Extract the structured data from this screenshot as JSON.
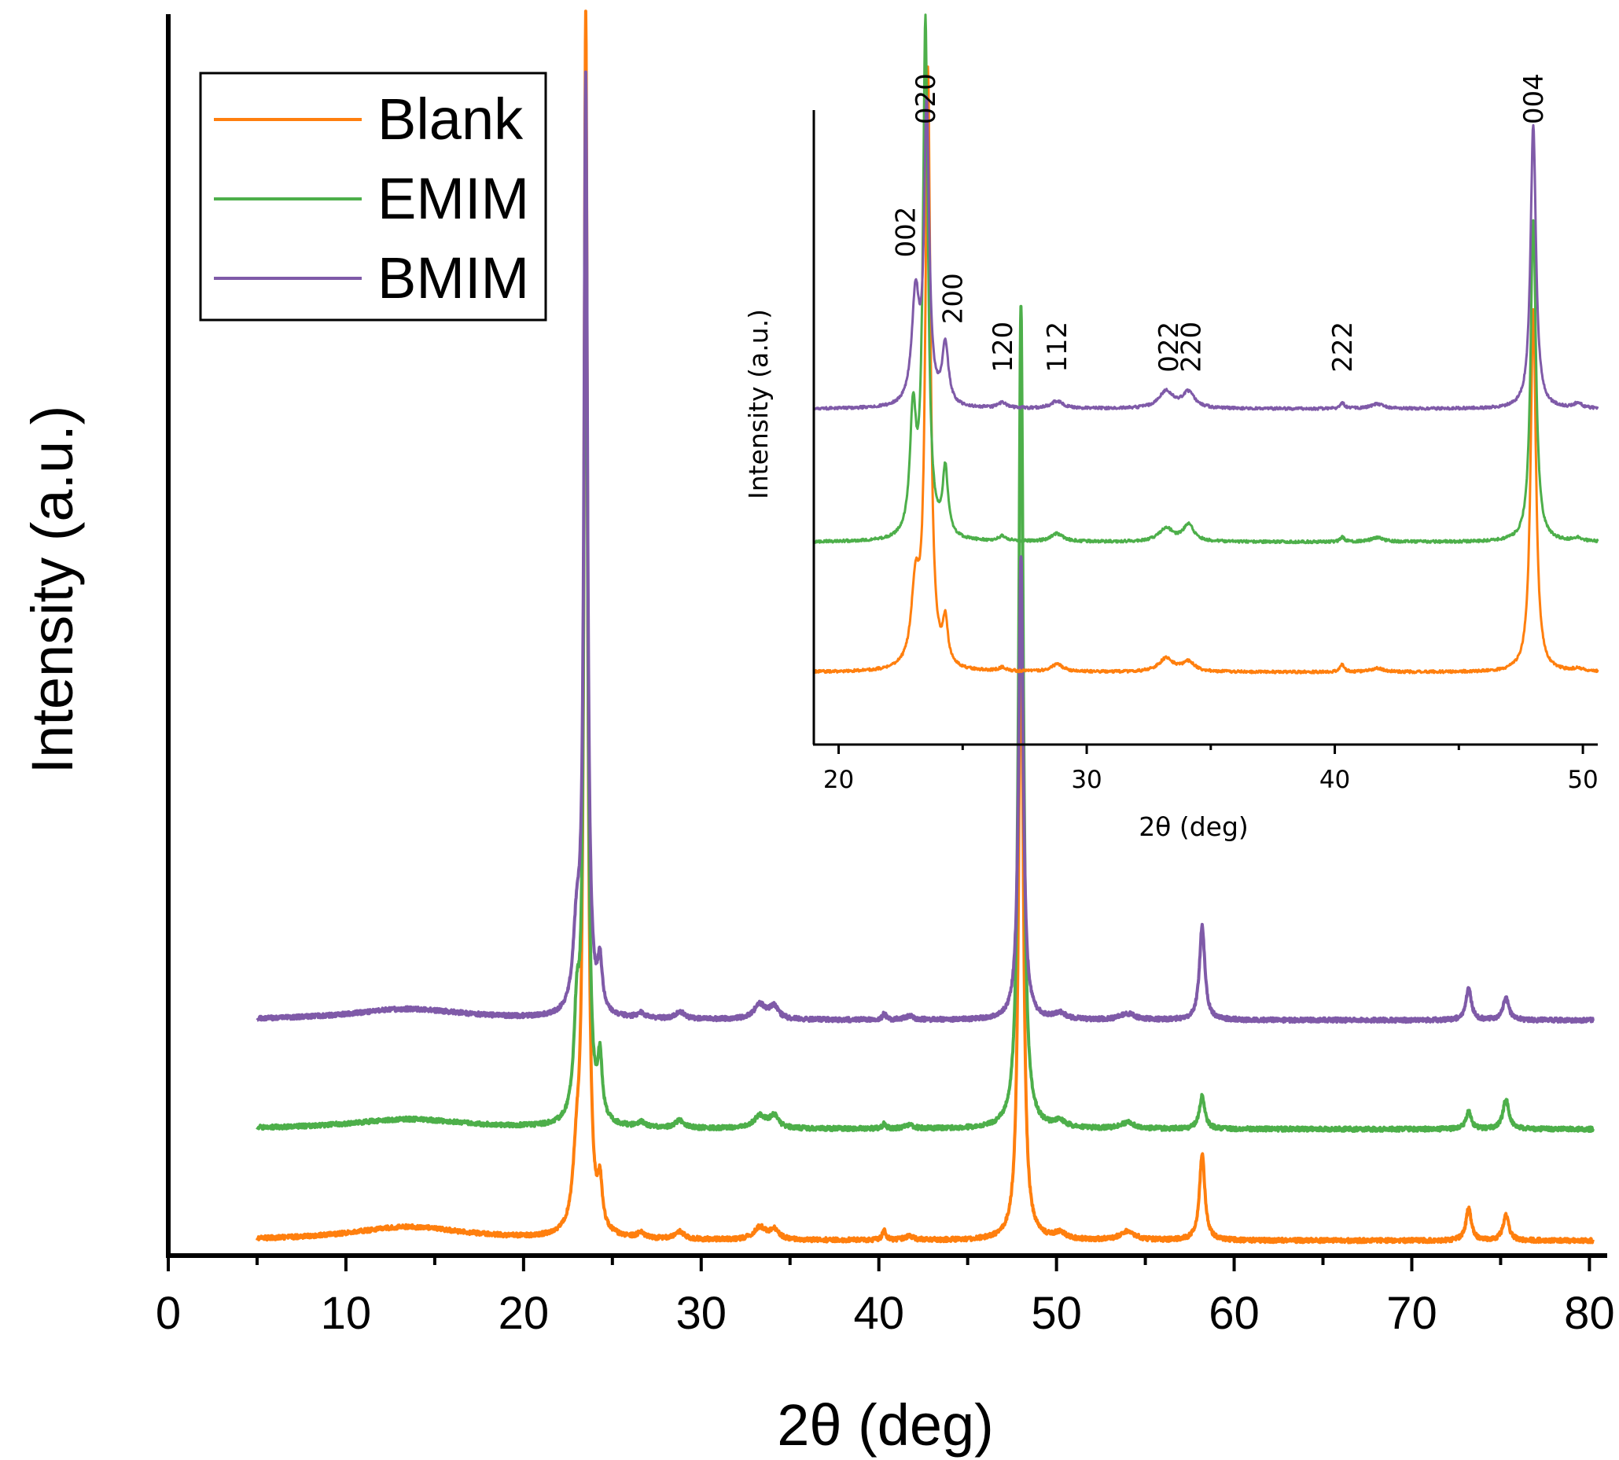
{
  "chart_data": [
    {
      "type": "line",
      "xlabel": "2θ (deg)",
      "ylabel": "Intensity (a.u.)",
      "xlim": [
        0,
        81
      ],
      "ylim": [
        0,
        100
      ],
      "xticks": [
        "0",
        "10",
        "20",
        "30",
        "40",
        "50",
        "60",
        "70",
        "80"
      ],
      "legend": {
        "position": "top-left",
        "entries": [
          "Blank",
          "EMIM",
          "BMIM"
        ]
      },
      "series": [
        {
          "name": "Blank",
          "color": "#ff7f0e",
          "baseline": 1.2,
          "x_range": [
            5,
            80.2
          ],
          "peaks": [
            {
              "x": 13.5,
              "h": 1.1,
              "w": 4.0
            },
            {
              "x": 23.0,
              "h": 5.5,
              "w": 0.25
            },
            {
              "x": 23.5,
              "h": 98.0,
              "w": 0.12
            },
            {
              "x": 24.3,
              "h": 3.5,
              "w": 0.15
            },
            {
              "x": 26.6,
              "h": 0.4,
              "w": 0.25
            },
            {
              "x": 28.8,
              "h": 0.6,
              "w": 0.3
            },
            {
              "x": 33.3,
              "h": 1.0,
              "w": 0.4
            },
            {
              "x": 34.1,
              "h": 0.8,
              "w": 0.3
            },
            {
              "x": 40.3,
              "h": 0.8,
              "w": 0.12
            },
            {
              "x": 41.7,
              "h": 0.3,
              "w": 0.3
            },
            {
              "x": 48.0,
              "h": 54.0,
              "w": 0.15
            },
            {
              "x": 50.2,
              "h": 0.5,
              "w": 0.4
            },
            {
              "x": 54.0,
              "h": 0.7,
              "w": 0.5
            },
            {
              "x": 58.2,
              "h": 7.0,
              "w": 0.18
            },
            {
              "x": 73.2,
              "h": 2.6,
              "w": 0.18
            },
            {
              "x": 75.3,
              "h": 2.0,
              "w": 0.2
            }
          ]
        },
        {
          "name": "EMIM",
          "color": "#4daf4a",
          "baseline": 10.2,
          "x_range": [
            5,
            80.2
          ],
          "peaks": [
            {
              "x": 13.5,
              "h": 0.8,
              "w": 4.0
            },
            {
              "x": 23.0,
              "h": 8.0,
              "w": 0.2
            },
            {
              "x": 23.5,
              "h": 81.0,
              "w": 0.12
            },
            {
              "x": 24.3,
              "h": 4.8,
              "w": 0.15
            },
            {
              "x": 26.6,
              "h": 0.4,
              "w": 0.25
            },
            {
              "x": 28.8,
              "h": 0.6,
              "w": 0.3
            },
            {
              "x": 33.3,
              "h": 1.0,
              "w": 0.4
            },
            {
              "x": 34.1,
              "h": 1.0,
              "w": 0.3
            },
            {
              "x": 40.3,
              "h": 0.4,
              "w": 0.12
            },
            {
              "x": 41.7,
              "h": 0.3,
              "w": 0.3
            },
            {
              "x": 48.0,
              "h": 66.5,
              "w": 0.15
            },
            {
              "x": 50.2,
              "h": 0.5,
              "w": 0.4
            },
            {
              "x": 54.0,
              "h": 0.5,
              "w": 0.5
            },
            {
              "x": 58.2,
              "h": 2.7,
              "w": 0.18
            },
            {
              "x": 73.2,
              "h": 1.4,
              "w": 0.18
            },
            {
              "x": 75.3,
              "h": 2.4,
              "w": 0.2
            }
          ]
        },
        {
          "name": "BMIM",
          "color": "#7f5aa8",
          "baseline": 19.0,
          "x_range": [
            5,
            80.2
          ],
          "peaks": [
            {
              "x": 13.5,
              "h": 0.9,
              "w": 4.0
            },
            {
              "x": 23.0,
              "h": 6.5,
              "w": 0.25
            },
            {
              "x": 23.5,
              "h": 75.0,
              "w": 0.12
            },
            {
              "x": 24.3,
              "h": 3.8,
              "w": 0.15
            },
            {
              "x": 26.6,
              "h": 0.4,
              "w": 0.25
            },
            {
              "x": 28.8,
              "h": 0.6,
              "w": 0.3
            },
            {
              "x": 33.3,
              "h": 1.2,
              "w": 0.4
            },
            {
              "x": 34.1,
              "h": 1.0,
              "w": 0.3
            },
            {
              "x": 40.3,
              "h": 0.5,
              "w": 0.12
            },
            {
              "x": 41.7,
              "h": 0.3,
              "w": 0.3
            },
            {
              "x": 48.0,
              "h": 37.5,
              "w": 0.15
            },
            {
              "x": 50.2,
              "h": 0.5,
              "w": 0.4
            },
            {
              "x": 54.0,
              "h": 0.5,
              "w": 0.5
            },
            {
              "x": 58.2,
              "h": 7.6,
              "w": 0.18
            },
            {
              "x": 73.2,
              "h": 2.6,
              "w": 0.18
            },
            {
              "x": 75.3,
              "h": 1.8,
              "w": 0.2
            }
          ]
        }
      ]
    },
    {
      "type": "line",
      "title": "inset",
      "xlabel": "2θ (deg)",
      "ylabel": "Intensity (a.u.)",
      "xlim": [
        19,
        50.6
      ],
      "ylim": [
        0,
        100
      ],
      "xticks": [
        "20",
        "30",
        "40",
        "50"
      ],
      "series": [
        {
          "name": "Blank",
          "color": "#ff7f0e",
          "baseline": 6.5,
          "x_range": [
            19,
            50.6
          ],
          "peaks": [
            {
              "x": 23.1,
              "h": 13.0,
              "w": 0.2
            },
            {
              "x": 23.6,
              "h": 98.0,
              "w": 0.12
            },
            {
              "x": 24.3,
              "h": 7.0,
              "w": 0.12
            },
            {
              "x": 26.6,
              "h": 0.6,
              "w": 0.2
            },
            {
              "x": 28.8,
              "h": 1.2,
              "w": 0.3
            },
            {
              "x": 33.2,
              "h": 2.2,
              "w": 0.35
            },
            {
              "x": 34.1,
              "h": 1.6,
              "w": 0.3
            },
            {
              "x": 40.3,
              "h": 1.2,
              "w": 0.1
            },
            {
              "x": 41.7,
              "h": 0.6,
              "w": 0.3
            },
            {
              "x": 48.0,
              "h": 60.0,
              "w": 0.13
            },
            {
              "x": 49.8,
              "h": 0.5,
              "w": 0.2
            }
          ]
        },
        {
          "name": "EMIM",
          "color": "#4daf4a",
          "baseline": 28.0,
          "x_range": [
            19,
            50.6
          ],
          "peaks": [
            {
              "x": 23.0,
              "h": 20.0,
              "w": 0.15
            },
            {
              "x": 23.5,
              "h": 85.0,
              "w": 0.12
            },
            {
              "x": 24.3,
              "h": 11.0,
              "w": 0.13
            },
            {
              "x": 26.6,
              "h": 0.8,
              "w": 0.2
            },
            {
              "x": 28.8,
              "h": 1.3,
              "w": 0.3
            },
            {
              "x": 33.2,
              "h": 2.2,
              "w": 0.35
            },
            {
              "x": 34.1,
              "h": 2.8,
              "w": 0.25
            },
            {
              "x": 40.3,
              "h": 0.8,
              "w": 0.1
            },
            {
              "x": 41.7,
              "h": 0.7,
              "w": 0.3
            },
            {
              "x": 48.0,
              "h": 53.0,
              "w": 0.13
            },
            {
              "x": 49.8,
              "h": 0.6,
              "w": 0.2
            }
          ]
        },
        {
          "name": "BMIM",
          "color": "#7f5aa8",
          "baseline": 50.0,
          "x_range": [
            19,
            50.6
          ],
          "peaks": [
            {
              "x": 23.1,
              "h": 18.0,
              "w": 0.18
            },
            {
              "x": 23.55,
              "h": 49.0,
              "w": 0.12
            },
            {
              "x": 24.3,
              "h": 10.0,
              "w": 0.15
            },
            {
              "x": 26.6,
              "h": 0.9,
              "w": 0.2
            },
            {
              "x": 28.8,
              "h": 1.2,
              "w": 0.3
            },
            {
              "x": 33.2,
              "h": 2.8,
              "w": 0.35
            },
            {
              "x": 34.1,
              "h": 2.6,
              "w": 0.3
            },
            {
              "x": 40.3,
              "h": 1.0,
              "w": 0.1
            },
            {
              "x": 41.7,
              "h": 0.8,
              "w": 0.3
            },
            {
              "x": 48.0,
              "h": 47.0,
              "w": 0.13
            },
            {
              "x": 49.8,
              "h": 0.8,
              "w": 0.2
            }
          ]
        }
      ],
      "annotations": [
        {
          "text": "002",
          "x": 22.7,
          "y": 75
        },
        {
          "text": "020",
          "x": 23.5,
          "y": 97
        },
        {
          "text": "200",
          "x": 24.6,
          "y": 64
        },
        {
          "text": "120",
          "x": 26.6,
          "y": 56
        },
        {
          "text": "112",
          "x": 28.8,
          "y": 56
        },
        {
          "text": "022",
          "x": 33.3,
          "y": 56
        },
        {
          "text": "220",
          "x": 34.2,
          "y": 56
        },
        {
          "text": "222",
          "x": 40.3,
          "y": 56
        },
        {
          "text": "004",
          "x": 48.0,
          "y": 97
        }
      ]
    }
  ]
}
